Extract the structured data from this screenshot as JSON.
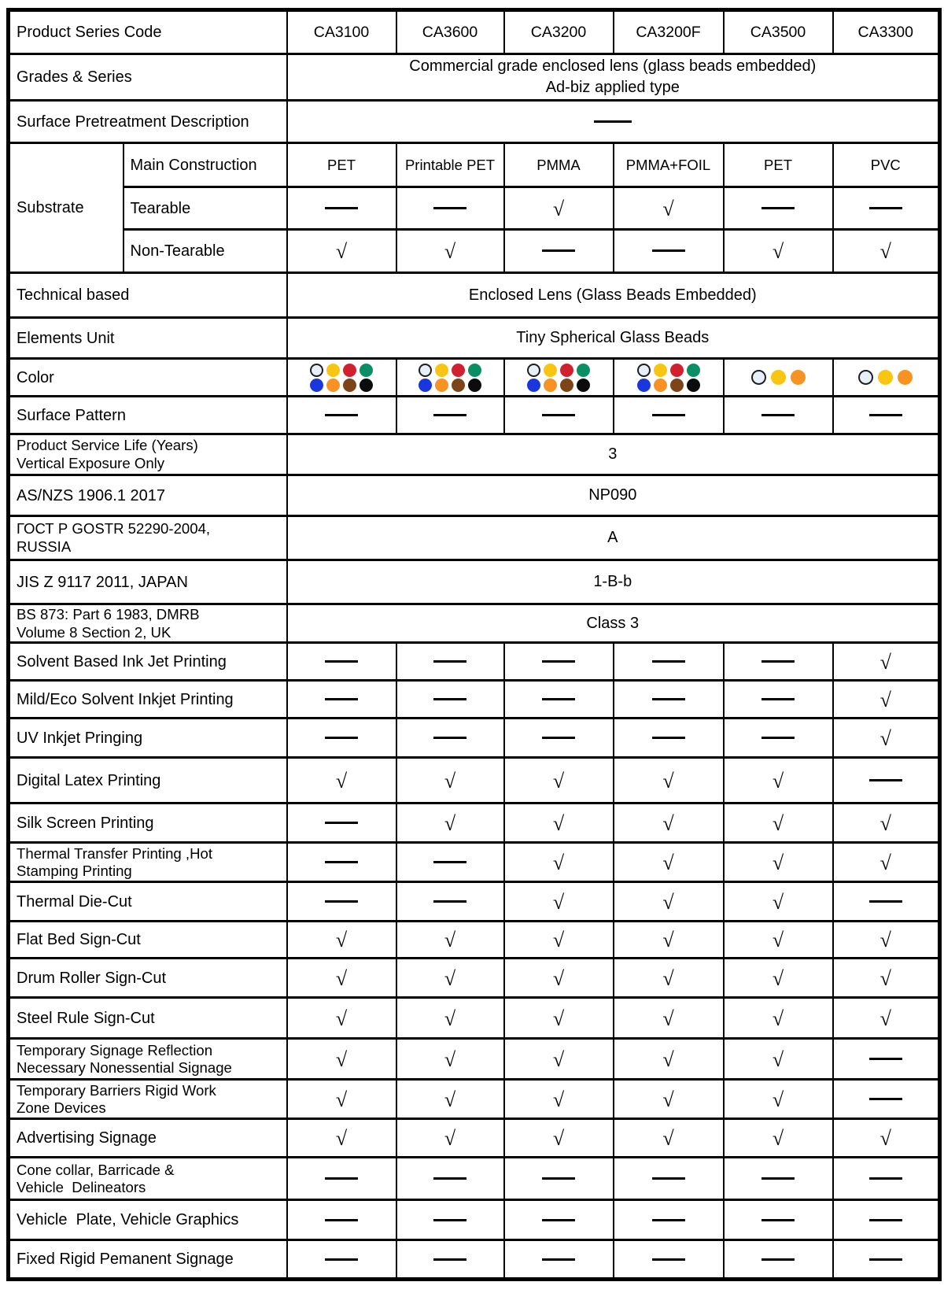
{
  "table": {
    "header": {
      "label": "Product Series Code",
      "codes": [
        "CA3100",
        "CA3600",
        "CA3200",
        "CA3200F",
        "CA3500",
        "CA3300"
      ]
    },
    "symbols": {
      "check": "√",
      "dash": "long-dash"
    },
    "palette": {
      "white": "#e8eff8",
      "yellow": "#f9c513",
      "red": "#d2212e",
      "green": "#0a8e63",
      "blue": "#1a36dd",
      "orange": "#f69322",
      "brown": "#7d4418",
      "black": "#0c0c0c",
      "white_outline": "#1e1e1e"
    },
    "rows": [
      {
        "type": "span",
        "label": "Grades & Series",
        "value": "Commercial grade enclosed lens (glass beads embedded)\nAd-biz applied type"
      },
      {
        "type": "span",
        "label": "Surface Pretreatment Description",
        "value": "DASH"
      },
      {
        "type": "group",
        "label": "Substrate",
        "subrows": [
          {
            "label": "Main Construction",
            "text": true,
            "cells": [
              "PET",
              "Printable PET",
              "PMMA",
              "PMMA+FOIL",
              "PET",
              "PVC"
            ]
          },
          {
            "label": "Tearable",
            "cells": [
              "D",
              "D",
              "C",
              "C",
              "D",
              "D"
            ]
          },
          {
            "label": "Non-Tearable",
            "cells": [
              "C",
              "C",
              "D",
              "D",
              "C",
              "C"
            ]
          }
        ]
      },
      {
        "type": "span",
        "label": "Technical based",
        "value": "Enclosed Lens (Glass Beads Embedded)"
      },
      {
        "type": "span",
        "label": "Elements Unit",
        "value": "Tiny Spherical Glass Beads"
      },
      {
        "type": "color",
        "label": "Color",
        "cells": [
          [
            "white",
            "yellow",
            "red",
            "green",
            "blue",
            "orange",
            "brown",
            "black"
          ],
          [
            "white",
            "yellow",
            "red",
            "green",
            "blue",
            "orange",
            "brown",
            "black"
          ],
          [
            "white",
            "yellow",
            "red",
            "green",
            "blue",
            "orange",
            "brown",
            "black"
          ],
          [
            "white",
            "yellow",
            "red",
            "green",
            "blue",
            "orange",
            "brown",
            "black"
          ],
          [
            "white",
            "yellow",
            "orange"
          ],
          [
            "white",
            "yellow",
            "orange"
          ]
        ]
      },
      {
        "type": "cells",
        "label": "Surface Pattern",
        "cells": [
          "D",
          "D",
          "D",
          "D",
          "D",
          "D"
        ]
      },
      {
        "type": "span",
        "label": "Product Service Life (Years)\nVertical Exposure Only",
        "value": "3"
      },
      {
        "type": "span",
        "label": "AS/NZS 1906.1 2017",
        "value": "NP090"
      },
      {
        "type": "span",
        "label": "ГОСТ Р GOSTR 52290-2004,\nRUSSIA",
        "value": "A"
      },
      {
        "type": "span",
        "label": "JIS Z 9117 2011, JAPAN",
        "value": "1-B-b"
      },
      {
        "type": "span",
        "label": "BS 873: Part 6 1983, DMRB\nVolume 8 Section 2, UK",
        "value": "Class 3"
      },
      {
        "type": "cells",
        "label": "Solvent Based Ink Jet Printing",
        "cells": [
          "D",
          "D",
          "D",
          "D",
          "D",
          "C"
        ]
      },
      {
        "type": "cells",
        "label": "Mild/Eco Solvent Inkjet Printing",
        "cells": [
          "D",
          "D",
          "D",
          "D",
          "D",
          "C"
        ]
      },
      {
        "type": "cells",
        "label": "UV Inkjet Pringing",
        "cells": [
          "D",
          "D",
          "D",
          "D",
          "D",
          "C"
        ]
      },
      {
        "type": "cells",
        "label": "Digital Latex Printing",
        "cells": [
          "C",
          "C",
          "C",
          "C",
          "C",
          "D"
        ]
      },
      {
        "type": "cells",
        "label": "Silk Screen Printing",
        "cells": [
          "D",
          "C",
          "C",
          "C",
          "C",
          "C"
        ]
      },
      {
        "type": "cells",
        "label": "Thermal Transfer Printing ,Hot\nStamping Printing",
        "cells": [
          "D",
          "D",
          "C",
          "C",
          "C",
          "C"
        ]
      },
      {
        "type": "cells",
        "label": "Thermal Die-Cut",
        "cells": [
          "D",
          "D",
          "C",
          "C",
          "C",
          "D"
        ]
      },
      {
        "type": "cells",
        "label": "Flat Bed Sign-Cut",
        "cells": [
          "C",
          "C",
          "C",
          "C",
          "C",
          "C"
        ]
      },
      {
        "type": "cells",
        "label": "Drum Roller Sign-Cut",
        "cells": [
          "C",
          "C",
          "C",
          "C",
          "C",
          "C"
        ]
      },
      {
        "type": "cells",
        "label": "Steel Rule Sign-Cut",
        "cells": [
          "C",
          "C",
          "C",
          "C",
          "C",
          "C"
        ]
      },
      {
        "type": "cells",
        "label": "Temporary Signage Reflection\nNecessary Nonessential Signage",
        "cells": [
          "C",
          "C",
          "C",
          "C",
          "C",
          "D"
        ]
      },
      {
        "type": "cells",
        "label": "Temporary Barriers Rigid Work\nZone Devices",
        "cells": [
          "C",
          "C",
          "C",
          "C",
          "C",
          "D"
        ]
      },
      {
        "type": "cells",
        "label": "Advertising Signage",
        "cells": [
          "C",
          "C",
          "C",
          "C",
          "C",
          "C"
        ]
      },
      {
        "type": "cells",
        "label": "Cone collar, Barricade &\nVehicle  Delineators",
        "cells": [
          "D",
          "D",
          "D",
          "D",
          "D",
          "D"
        ]
      },
      {
        "type": "cells",
        "label": "Vehicle  Plate, Vehicle Graphics",
        "cells": [
          "D",
          "D",
          "D",
          "D",
          "D",
          "D"
        ]
      },
      {
        "type": "cells",
        "label": "Fixed Rigid Pemanent Signage",
        "cells": [
          "D",
          "D",
          "D",
          "D",
          "D",
          "D"
        ]
      }
    ]
  }
}
